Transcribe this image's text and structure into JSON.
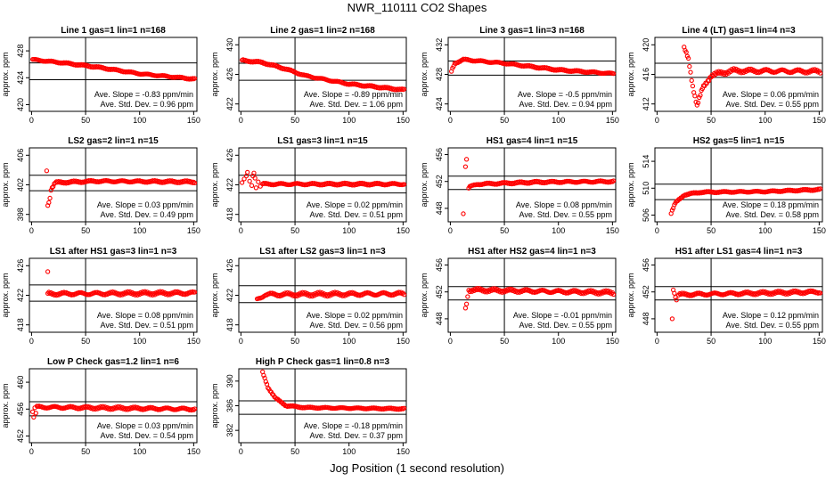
{
  "figure": {
    "title": "NWR_110111  CO2 Shapes",
    "xlabel": "Jog Position (1 second resolution)"
  },
  "chart_data": [
    {
      "type": "scatter",
      "title": "Line 1 gas=1 lin=1 n=168",
      "ylabel": "approx. ppm",
      "xlim": [
        -2,
        153
      ],
      "ylim": [
        419,
        430
      ],
      "yticks": [
        420,
        424,
        428
      ],
      "xticks": [
        0,
        50,
        100,
        150
      ],
      "ref_lines": [
        426.2,
        423.7
      ],
      "vline_x": 50,
      "slope_text": "Ave. Slope = -0.83 ppm/min",
      "std_text": "Ave. Std. Dev. = 0.96 ppm",
      "series": {
        "x_start": 1,
        "x_end": 151,
        "step": 1,
        "knots": [
          [
            1,
            426.7
          ],
          [
            30,
            426.2
          ],
          [
            60,
            425.6
          ],
          [
            100,
            424.6
          ],
          [
            151,
            423.8
          ]
        ],
        "noise": 0.12
      }
    },
    {
      "type": "scatter",
      "title": "Line 2 gas=1 lin=2 n=168",
      "ylabel": "approx. ppm",
      "xlim": [
        -2,
        153
      ],
      "ylim": [
        421,
        431
      ],
      "yticks": [
        422,
        426,
        430
      ],
      "xticks": [
        0,
        50,
        100,
        150
      ],
      "ref_lines": [
        427.5,
        425.2
      ],
      "vline_x": 50,
      "slope_text": "Ave. Slope = -0.89 ppm/min",
      "std_text": "Ave. Std. Dev. = 1.06 ppm",
      "series": {
        "x_start": 1,
        "x_end": 151,
        "step": 1,
        "knots": [
          [
            1,
            427.9
          ],
          [
            20,
            427.6
          ],
          [
            40,
            426.8
          ],
          [
            60,
            425.8
          ],
          [
            100,
            424.7
          ],
          [
            151,
            423.9
          ]
        ],
        "noise": 0.12
      }
    },
    {
      "type": "scatter",
      "title": "Line 3 gas=1 lin=3 n=168",
      "ylabel": "approx. ppm",
      "xlim": [
        -2,
        153
      ],
      "ylim": [
        423,
        433
      ],
      "yticks": [
        424,
        428,
        432
      ],
      "xticks": [
        0,
        50,
        100,
        150
      ],
      "ref_lines": [
        429.8,
        427.9
      ],
      "vline_x": 50,
      "slope_text": "Ave. Slope = -0.5 ppm/min",
      "std_text": "Ave. Std. Dev. = 0.94 ppm",
      "series": {
        "x_start": 1,
        "x_end": 151,
        "step": 1,
        "knots": [
          [
            1,
            428.4
          ],
          [
            4,
            429.5
          ],
          [
            12,
            430.0
          ],
          [
            50,
            429.5
          ],
          [
            100,
            428.6
          ],
          [
            151,
            428.1
          ]
        ],
        "noise": 0.12
      }
    },
    {
      "type": "scatter",
      "title": "Line 4 (LT) gas=1 lin=4 n=3",
      "ylabel": "approx. ppm",
      "xlim": [
        -2,
        153
      ],
      "ylim": [
        411,
        421
      ],
      "yticks": [
        412,
        416,
        420
      ],
      "xticks": [
        0,
        50,
        100,
        150
      ],
      "ref_lines": [
        417.5,
        415.6
      ],
      "vline_x": 50,
      "slope_text": "Ave. Slope = 0.06 ppm/min",
      "std_text": "Ave. Std. Dev. = 0.55 ppm",
      "series": {
        "x_start": 25,
        "x_end": 151,
        "step": 1,
        "knots": [
          [
            25,
            419.5
          ],
          [
            29,
            418.0
          ],
          [
            33,
            414.5
          ],
          [
            37,
            411.8
          ],
          [
            42,
            414.0
          ],
          [
            50,
            415.9
          ],
          [
            70,
            416.5
          ],
          [
            151,
            416.4
          ]
        ],
        "noise": 0.3
      }
    },
    {
      "type": "scatter",
      "title": "LS2 gas=2 lin=1 n=15",
      "ylabel": "approx. ppm",
      "xlim": [
        -2,
        153
      ],
      "ylim": [
        397,
        407
      ],
      "yticks": [
        398,
        402,
        406
      ],
      "xticks": [
        0,
        50,
        100,
        150
      ],
      "ref_lines": [
        403.3,
        401.2
      ],
      "vline_x": 50,
      "slope_text": "Ave. Slope = 0.03 ppm/min",
      "std_text": "Ave. Std. Dev. = 0.49 ppm",
      "series": {
        "x_start": 18,
        "x_end": 151,
        "step": 1,
        "knots": [
          [
            18,
            401.4
          ],
          [
            22,
            402.3
          ],
          [
            60,
            402.5
          ],
          [
            151,
            402.4
          ]
        ],
        "noise": 0.15
      },
      "outliers": [
        [
          14,
          403.9
        ],
        [
          15,
          399.2
        ],
        [
          16,
          399.6
        ],
        [
          17,
          400.2
        ]
      ]
    },
    {
      "type": "scatter",
      "title": "LS1 gas=3 lin=1 n=15",
      "ylabel": "approx. ppm",
      "xlim": [
        -2,
        153
      ],
      "ylim": [
        417,
        427
      ],
      "yticks": [
        418,
        422,
        426
      ],
      "xticks": [
        0,
        50,
        100,
        150
      ],
      "ref_lines": [
        423.3,
        420.9
      ],
      "vline_x": 50,
      "slope_text": "Ave. Slope = 0.02 ppm/min",
      "std_text": "Ave. Std. Dev. = 0.51 ppm",
      "series": {
        "x_start": 20,
        "x_end": 151,
        "step": 1,
        "knots": [
          [
            20,
            422.1
          ],
          [
            151,
            422.1
          ]
        ],
        "noise": 0.15
      },
      "outliers": [
        [
          1,
          422.3
        ],
        [
          3,
          422.8
        ],
        [
          5,
          423.2
        ],
        [
          6,
          423.7
        ],
        [
          8,
          422.5
        ],
        [
          10,
          421.9
        ],
        [
          11,
          423.2
        ],
        [
          12,
          423.6
        ],
        [
          13,
          422.9
        ],
        [
          14,
          421.6
        ],
        [
          16,
          422.4
        ],
        [
          18,
          421.8
        ]
      ]
    },
    {
      "type": "scatter",
      "title": "HS1 gas=4 lin=1 n=15",
      "ylabel": "approx. ppm",
      "xlim": [
        -2,
        153
      ],
      "ylim": [
        446,
        457
      ],
      "yticks": [
        448,
        452,
        456
      ],
      "xticks": [
        0,
        50,
        100,
        150
      ],
      "ref_lines": [
        452.8,
        450.8
      ],
      "vline_x": 50,
      "slope_text": "Ave. Slope = 0.08 ppm/min",
      "std_text": "Ave. Std. Dev. = 0.55 ppm",
      "series": {
        "x_start": 18,
        "x_end": 151,
        "step": 1,
        "knots": [
          [
            18,
            451.2
          ],
          [
            25,
            451.6
          ],
          [
            80,
            451.9
          ],
          [
            151,
            452.0
          ]
        ],
        "noise": 0.15
      },
      "outliers": [
        [
          12,
          447.2
        ],
        [
          14,
          454.2
        ],
        [
          15,
          455.3
        ],
        [
          17,
          451.0
        ]
      ]
    },
    {
      "type": "scatter",
      "title": "HS2 gas=5 lin=1 n=15",
      "ylabel": "approx. ppm",
      "xlim": [
        -2,
        153
      ],
      "ylim": [
        505,
        516
      ],
      "yticks": [
        506,
        510,
        514
      ],
      "xticks": [
        0,
        50,
        100,
        150
      ],
      "ref_lines": [
        510.6,
        508.3
      ],
      "vline_x": 50,
      "slope_text": "Ave. Slope = 0.18 ppm/min",
      "std_text": "Ave. Std. Dev. = 0.58 ppm",
      "series": {
        "x_start": 13,
        "x_end": 151,
        "step": 1,
        "knots": [
          [
            13,
            506.3
          ],
          [
            17,
            507.8
          ],
          [
            25,
            509.0
          ],
          [
            40,
            509.4
          ],
          [
            100,
            509.5
          ],
          [
            151,
            509.8
          ]
        ],
        "noise": 0.12
      }
    },
    {
      "type": "scatter",
      "title": "LS1 after HS1 gas=3 lin=1 n=3",
      "ylabel": "approx. ppm",
      "xlim": [
        -2,
        153
      ],
      "ylim": [
        417,
        427
      ],
      "yticks": [
        418,
        422,
        426
      ],
      "xticks": [
        0,
        50,
        100,
        150
      ],
      "ref_lines": [
        423.4,
        421.2
      ],
      "vline_x": 50,
      "slope_text": "Ave. Slope = 0.08 ppm/min",
      "std_text": "Ave. Std. Dev. = 0.51 ppm",
      "series": {
        "x_start": 15,
        "x_end": 151,
        "step": 1,
        "knots": [
          [
            15,
            422.2
          ],
          [
            151,
            422.3
          ]
        ],
        "noise": 0.25
      },
      "outliers": [
        [
          15,
          425.2
        ]
      ]
    },
    {
      "type": "scatter",
      "title": "LS1 after LS2 gas=3 lin=1 n=3",
      "ylabel": "approx. ppm",
      "xlim": [
        -2,
        153
      ],
      "ylim": [
        417,
        427
      ],
      "yticks": [
        418,
        422,
        426
      ],
      "xticks": [
        0,
        50,
        100,
        150
      ],
      "ref_lines": [
        423.3,
        421.0
      ],
      "vline_x": 50,
      "slope_text": "Ave. Slope = 0.02 ppm/min",
      "std_text": "Ave. Std. Dev. = 0.56 ppm",
      "series": {
        "x_start": 15,
        "x_end": 151,
        "step": 1,
        "knots": [
          [
            15,
            421.4
          ],
          [
            22,
            422.1
          ],
          [
            151,
            422.2
          ]
        ],
        "noise": 0.28
      }
    },
    {
      "type": "scatter",
      "title": "HS1 after HS2 gas=4 lin=1 n=3",
      "ylabel": "approx. ppm",
      "xlim": [
        -2,
        153
      ],
      "ylim": [
        446,
        457
      ],
      "yticks": [
        448,
        452,
        456
      ],
      "xticks": [
        0,
        50,
        100,
        150
      ],
      "ref_lines": [
        452.8,
        450.8
      ],
      "vline_x": 50,
      "slope_text": "Ave. Slope = -0.01 ppm/min",
      "std_text": "Ave. Std. Dev. = 0.55 ppm",
      "series": {
        "x_start": 17,
        "x_end": 151,
        "step": 1,
        "knots": [
          [
            17,
            452.3
          ],
          [
            151,
            451.9
          ]
        ],
        "noise": 0.28
      },
      "outliers": [
        [
          14,
          449.6
        ],
        [
          15,
          450.2
        ],
        [
          16,
          451.3
        ]
      ]
    },
    {
      "type": "scatter",
      "title": "HS1 after LS1 gas=4 lin=1 n=3",
      "ylabel": "approx. ppm",
      "xlim": [
        -2,
        153
      ],
      "ylim": [
        446,
        457
      ],
      "yticks": [
        448,
        452,
        456
      ],
      "xticks": [
        0,
        50,
        100,
        150
      ],
      "ref_lines": [
        452.8,
        450.8
      ],
      "vline_x": 50,
      "slope_text": "Ave. Slope = 0.12 ppm/min",
      "std_text": "Ave. Std. Dev. = 0.55 ppm",
      "series": {
        "x_start": 20,
        "x_end": 151,
        "step": 1,
        "knots": [
          [
            20,
            451.6
          ],
          [
            151,
            452.0
          ]
        ],
        "noise": 0.25
      },
      "outliers": [
        [
          14,
          448.0
        ],
        [
          15,
          452.3
        ],
        [
          16,
          451.8
        ],
        [
          17,
          451.2
        ],
        [
          18,
          450.8
        ]
      ]
    },
    {
      "type": "scatter",
      "title": "Low P Check gas=1.2 lin=1 n=6",
      "ylabel": "approx. ppm",
      "xlim": [
        -2,
        153
      ],
      "ylim": [
        451,
        462
      ],
      "yticks": [
        452,
        456,
        460
      ],
      "xticks": [
        0,
        50,
        100,
        150
      ],
      "ref_lines": [
        457.1,
        455.0
      ],
      "vline_x": 50,
      "slope_text": "Ave. Slope = 0.03 ppm/min",
      "std_text": "Ave. Std. Dev. = 0.54 ppm",
      "series": {
        "x_start": 5,
        "x_end": 151,
        "step": 1,
        "knots": [
          [
            5,
            456.3
          ],
          [
            151,
            456.0
          ]
        ],
        "noise": 0.22
      },
      "outliers": [
        [
          1,
          455.6
        ],
        [
          2,
          454.8
        ],
        [
          3,
          456.2
        ],
        [
          4,
          455.4
        ]
      ]
    },
    {
      "type": "scatter",
      "title": "High P Check gas=1 lin=0.8 n=3",
      "ylabel": "approx. ppm",
      "xlim": [
        -2,
        153
      ],
      "ylim": [
        380,
        392
      ],
      "yticks": [
        382,
        386,
        390
      ],
      "xticks": [
        0,
        50,
        100,
        150
      ],
      "ref_lines": [
        386.8,
        384.6
      ],
      "vline_x": 50,
      "slope_text": "Ave. Slope = -0.18 ppm/min",
      "std_text": "Ave. Std. Dev. = 0.37 ppm",
      "series": {
        "x_start": 20,
        "x_end": 151,
        "step": 1,
        "knots": [
          [
            20,
            391.4
          ],
          [
            25,
            389.0
          ],
          [
            32,
            387.2
          ],
          [
            42,
            386.0
          ],
          [
            60,
            385.7
          ],
          [
            151,
            385.5
          ]
        ],
        "noise": 0.12
      }
    }
  ]
}
